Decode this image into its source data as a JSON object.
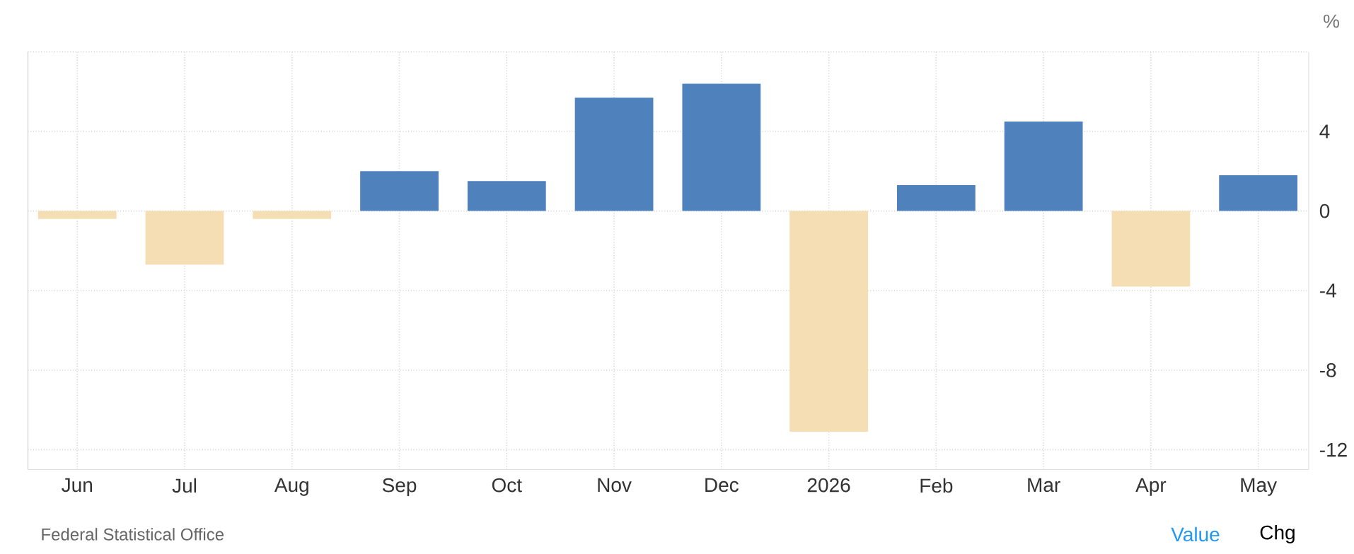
{
  "chart_data": {
    "type": "bar",
    "ylabel": "%",
    "categories": [
      "Jun",
      "Jul",
      "Aug",
      "Sep",
      "Oct",
      "Nov",
      "Dec",
      "2026",
      "Feb",
      "Mar",
      "Apr",
      "May"
    ],
    "values": [
      -0.4,
      -2.7,
      -0.4,
      2.0,
      1.5,
      5.7,
      6.4,
      -11.1,
      1.3,
      4.5,
      -3.8,
      1.8
    ],
    "colors": [
      "#f5deb3",
      "#f5deb3",
      "#f5deb3",
      "#4f81bd",
      "#4f81bd",
      "#4f81bd",
      "#4f81bd",
      "#f5deb3",
      "#4f81bd",
      "#4f81bd",
      "#f5deb3",
      "#4f81bd"
    ],
    "ylim": [
      -13,
      8
    ],
    "yticks": [
      -12,
      -8,
      -4,
      0,
      4,
      {
        "value": 8,
        "label": null
      }
    ],
    "grid": true,
    "annotations": [
      "Federal Statistical Office",
      "Value",
      "Chg"
    ]
  }
}
